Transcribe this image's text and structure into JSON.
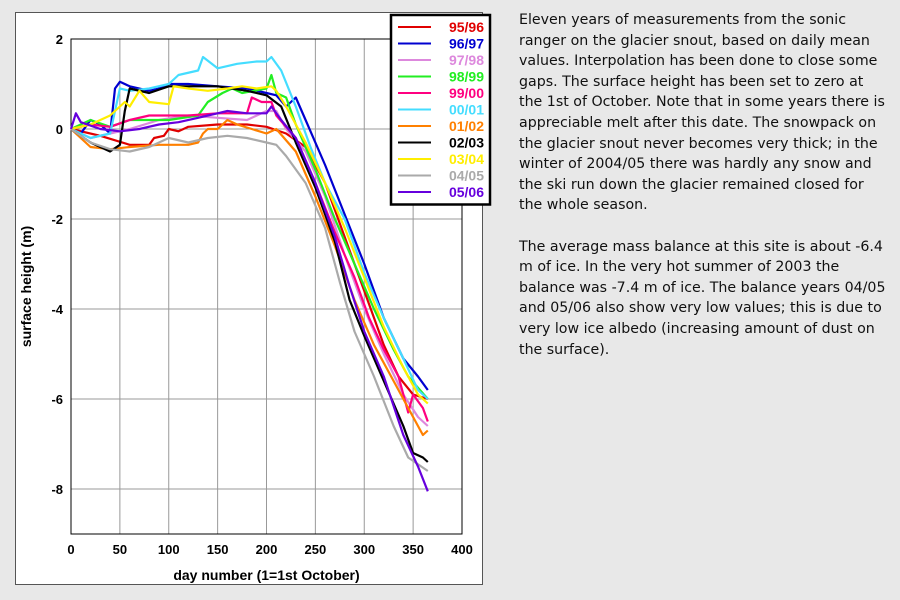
{
  "chart_data": {
    "type": "line",
    "title": "",
    "xlabel": "day number (1=1st October)",
    "ylabel": "surface height (m)",
    "xlim": [
      0,
      400
    ],
    "ylim": [
      -9,
      2
    ],
    "xticks": [
      0,
      50,
      100,
      150,
      200,
      250,
      300,
      350,
      400
    ],
    "yticks": [
      2,
      0,
      -2,
      -4,
      -6,
      -8
    ],
    "grid": true,
    "legend_position": "top-right",
    "series": [
      {
        "name": "95/96",
        "color": "#e00000",
        "x": [
          0,
          30,
          60,
          80,
          85,
          95,
          100,
          110,
          120,
          150,
          180,
          200,
          220,
          240,
          260,
          280,
          300,
          320,
          335,
          350,
          365
        ],
        "y": [
          0,
          -0.15,
          -0.35,
          -0.35,
          -0.2,
          -0.15,
          0.0,
          -0.05,
          0.05,
          0.1,
          0.1,
          0.05,
          -0.1,
          -0.4,
          -1.2,
          -2.4,
          -3.6,
          -4.8,
          -5.5,
          -5.9,
          -6.0
        ]
      },
      {
        "name": "96/97",
        "color": "#0000d0",
        "x": [
          0,
          10,
          20,
          30,
          40,
          45,
          50,
          60,
          80,
          90,
          100,
          120,
          150,
          180,
          200,
          210,
          220,
          230,
          240,
          260,
          280,
          300,
          320,
          340,
          355,
          365
        ],
        "y": [
          0,
          -0.1,
          0.2,
          0.1,
          -0.1,
          0.9,
          1.05,
          0.95,
          0.85,
          0.9,
          1.0,
          1.0,
          0.95,
          0.9,
          0.8,
          0.75,
          0.5,
          0.7,
          0.2,
          -0.8,
          -1.9,
          -3.0,
          -4.2,
          -5.1,
          -5.5,
          -5.8
        ]
      },
      {
        "name": "97/98",
        "color": "#dd88dd",
        "x": [
          0,
          20,
          40,
          60,
          90,
          120,
          150,
          180,
          200,
          210,
          220,
          240,
          260,
          280,
          300,
          320,
          340,
          355,
          365
        ],
        "y": [
          0,
          -0.2,
          -0.1,
          0.0,
          0.2,
          0.3,
          0.25,
          0.2,
          0.4,
          0.4,
          0.0,
          -0.5,
          -1.5,
          -2.8,
          -4.0,
          -5.0,
          -5.9,
          -6.4,
          -6.6
        ]
      },
      {
        "name": "98/99",
        "color": "#22ee22",
        "x": [
          0,
          20,
          40,
          60,
          100,
          130,
          140,
          155,
          165,
          175,
          200,
          205,
          210,
          220,
          230,
          250,
          270,
          290,
          310,
          330,
          345,
          365
        ],
        "y": [
          0,
          0.2,
          0.05,
          0.2,
          0.2,
          0.3,
          0.6,
          0.8,
          0.9,
          0.8,
          0.9,
          1.2,
          0.8,
          0.7,
          0.1,
          -0.9,
          -2.0,
          -3.0,
          -4.0,
          -4.9,
          -5.5,
          -6.0
        ]
      },
      {
        "name": "99/00",
        "color": "#ff0080",
        "x": [
          0,
          20,
          40,
          60,
          80,
          120,
          150,
          180,
          185,
          195,
          205,
          210,
          230,
          250,
          270,
          290,
          305,
          320,
          335,
          345,
          350,
          360,
          365
        ],
        "y": [
          0,
          0.1,
          0.05,
          0.2,
          0.3,
          0.3,
          0.35,
          0.35,
          0.7,
          0.6,
          0.6,
          0.3,
          -0.2,
          -1.2,
          -2.3,
          -3.3,
          -4.2,
          -4.9,
          -5.5,
          -6.3,
          -5.9,
          -6.2,
          -6.5
        ]
      },
      {
        "name": "00/01",
        "color": "#44ddff",
        "x": [
          0,
          20,
          40,
          50,
          60,
          80,
          100,
          110,
          130,
          135,
          150,
          170,
          190,
          200,
          205,
          215,
          230,
          245,
          260,
          280,
          300,
          320,
          340,
          355,
          365
        ],
        "y": [
          0,
          -0.2,
          -0.1,
          0.9,
          0.85,
          0.9,
          1.0,
          1.2,
          1.3,
          1.6,
          1.35,
          1.45,
          1.5,
          1.5,
          1.6,
          1.3,
          0.5,
          -0.4,
          -1.2,
          -2.0,
          -3.2,
          -4.2,
          -5.1,
          -5.8,
          -6.0
        ]
      },
      {
        "name": "01/02",
        "color": "#ff8000",
        "x": [
          0,
          20,
          40,
          60,
          90,
          120,
          130,
          135,
          140,
          150,
          160,
          170,
          185,
          200,
          210,
          230,
          250,
          270,
          290,
          310,
          330,
          350,
          360,
          365
        ],
        "y": [
          0,
          -0.4,
          -0.45,
          -0.4,
          -0.35,
          -0.35,
          -0.3,
          -0.1,
          0.0,
          0.0,
          0.2,
          0.1,
          0.0,
          -0.1,
          0.0,
          -0.5,
          -1.5,
          -2.6,
          -3.8,
          -4.8,
          -5.6,
          -6.4,
          -6.8,
          -6.7
        ]
      },
      {
        "name": "02/03",
        "color": "#000000",
        "x": [
          0,
          20,
          40,
          50,
          55,
          60,
          80,
          100,
          120,
          150,
          180,
          200,
          215,
          230,
          250,
          270,
          285,
          300,
          320,
          340,
          350,
          360,
          365
        ],
        "y": [
          0,
          -0.3,
          -0.5,
          -0.35,
          0.4,
          0.9,
          0.8,
          0.95,
          0.95,
          0.95,
          0.85,
          0.75,
          0.5,
          -0.3,
          -1.3,
          -2.5,
          -3.8,
          -4.6,
          -5.6,
          -6.6,
          -7.2,
          -7.3,
          -7.4
        ]
      },
      {
        "name": "03/04",
        "color": "#ffee00",
        "x": [
          0,
          20,
          40,
          55,
          60,
          70,
          80,
          100,
          105,
          120,
          140,
          160,
          175,
          190,
          205,
          210,
          220,
          240,
          260,
          280,
          300,
          320,
          340,
          355,
          365
        ],
        "y": [
          0,
          0.1,
          0.3,
          0.6,
          0.5,
          0.85,
          0.6,
          0.55,
          0.95,
          0.9,
          0.85,
          0.9,
          0.95,
          0.9,
          0.95,
          0.85,
          0.5,
          -0.3,
          -1.2,
          -2.2,
          -3.3,
          -4.4,
          -5.3,
          -5.9,
          -6.1
        ]
      },
      {
        "name": "04/05",
        "color": "#aaaaaa",
        "x": [
          0,
          20,
          40,
          60,
          80,
          100,
          120,
          140,
          160,
          180,
          200,
          210,
          220,
          240,
          260,
          275,
          290,
          310,
          330,
          345,
          365
        ],
        "y": [
          0,
          -0.3,
          -0.45,
          -0.5,
          -0.4,
          -0.2,
          -0.3,
          -0.2,
          -0.15,
          -0.2,
          -0.3,
          -0.35,
          -0.6,
          -1.2,
          -2.2,
          -3.4,
          -4.5,
          -5.5,
          -6.6,
          -7.3,
          -7.6
        ]
      },
      {
        "name": "05/06",
        "color": "#6600dd",
        "x": [
          0,
          5,
          10,
          30,
          50,
          70,
          90,
          110,
          130,
          140,
          150,
          160,
          180,
          200,
          205,
          215,
          230,
          250,
          270,
          285,
          300,
          320,
          340,
          355,
          365
        ],
        "y": [
          0,
          0.35,
          0.15,
          0.0,
          -0.05,
          0.0,
          0.1,
          0.15,
          0.25,
          0.3,
          0.35,
          0.4,
          0.35,
          0.35,
          0.5,
          0.2,
          -0.2,
          -1.2,
          -2.4,
          -3.5,
          -4.5,
          -5.5,
          -6.8,
          -7.5,
          -8.05
        ]
      }
    ]
  },
  "text_panel": {
    "paragraph_1": "Eleven years of measurements from the sonic ranger on the glacier snout, based on daily mean values. Interpolation has been done to close some gaps. The surface height has been set to zero at the 1st of October. Note that in some years there is appreciable melt after this date. The snowpack on the glacier snout never becomes very thick; in the winter of 2004/05 there was hardly any snow and the ski run down the glacier remained closed for the whole season.",
    "paragraph_2": "The average mass balance at this site is about -6.4 m of ice. In the very hot summer of 2003 the balance was -7.4 m of ice. The balance years 04/05 and 05/06 also show very low values; this is due to very low ice albedo (increasing amount of dust on the surface)."
  }
}
